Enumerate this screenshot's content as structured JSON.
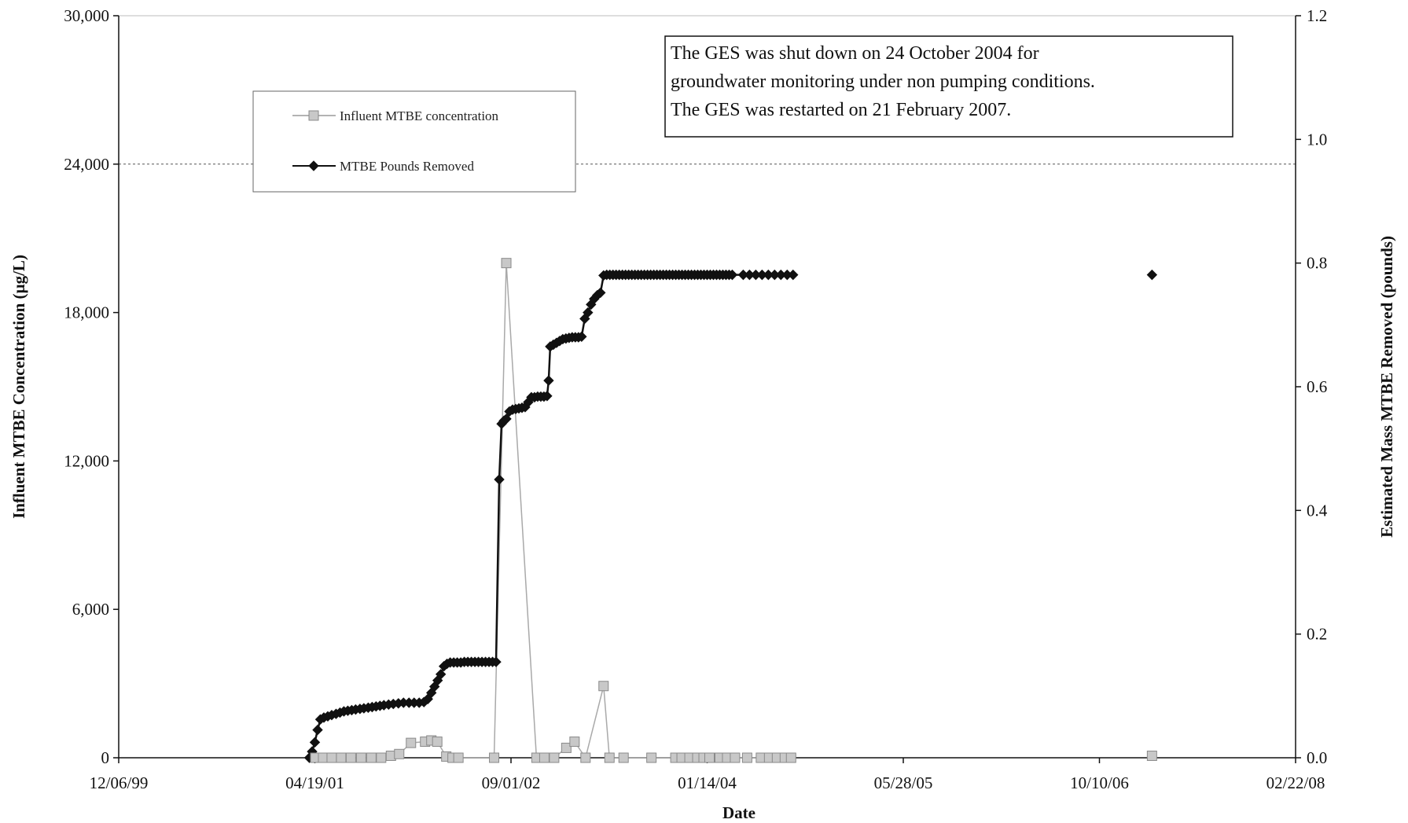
{
  "chart_data": {
    "type": "line",
    "title": "",
    "xlabel": "Date",
    "ylabel_left": "Influent MTBE Concentration (µg/L)",
    "ylabel_right": "Estimated Mass MTBE Removed (pounds)",
    "x_axis": {
      "type": "date",
      "range": [
        "1999-12-06",
        "2008-02-22"
      ],
      "ticks": [
        "1999-12-06",
        "2001-04-19",
        "2002-09-01",
        "2004-01-14",
        "2005-05-28",
        "2006-10-10",
        "2008-02-22"
      ],
      "tick_labels": [
        "12/06/99",
        "04/19/01",
        "09/01/02",
        "01/14/04",
        "05/28/05",
        "10/10/06",
        "02/22/08"
      ]
    },
    "y_left": {
      "range": [
        0,
        30000
      ],
      "ticks": [
        0,
        6000,
        12000,
        18000,
        24000,
        30000
      ],
      "tick_labels": [
        "0",
        "6,000",
        "12,000",
        "18,000",
        "24,000",
        "30,000"
      ]
    },
    "y_right": {
      "range": [
        0,
        1.2
      ],
      "ticks": [
        0,
        0.2,
        0.4,
        0.6,
        0.8,
        1.0,
        1.2
      ],
      "tick_labels": [
        "0.0",
        "0.2",
        "0.4",
        "0.6",
        "0.8",
        "1.0",
        "1.2"
      ]
    },
    "grid": "dashed horizontal at 24,000",
    "legend_placement": "top-left",
    "annotation": [
      "The GES was shut down on 24 October 2004 for",
      "groundwater monitoring under non pumping conditions.",
      "The GES was restarted on 21 February 2007."
    ],
    "colors": {
      "concentration": "#c8c8c8",
      "concentration_edge": "#8a8a8a",
      "pounds": "#111111"
    },
    "series": [
      {
        "name": "Influent MTBE concentration",
        "axis": "left",
        "marker": "square",
        "points": [
          [
            "2001-04-20",
            0
          ],
          [
            "2001-05-10",
            0
          ],
          [
            "2001-06-01",
            0
          ],
          [
            "2001-06-25",
            0
          ],
          [
            "2001-07-20",
            0
          ],
          [
            "2001-08-15",
            0
          ],
          [
            "2001-09-10",
            0
          ],
          [
            "2001-10-05",
            0
          ],
          [
            "2001-10-30",
            80
          ],
          [
            "2001-11-20",
            150
          ],
          [
            "2001-12-20",
            600
          ],
          [
            "2002-01-25",
            650
          ],
          [
            "2002-02-10",
            700
          ],
          [
            "2002-02-25",
            650
          ],
          [
            "2002-03-20",
            50
          ],
          [
            "2002-04-05",
            0
          ],
          [
            "2002-04-20",
            0
          ],
          [
            "2002-07-20",
            0
          ],
          [
            "2002-08-20",
            20000
          ],
          [
            "2002-11-05",
            0
          ],
          [
            "2002-11-25",
            0
          ],
          [
            "2002-12-20",
            0
          ],
          [
            "2003-01-20",
            400
          ],
          [
            "2003-02-10",
            650
          ],
          [
            "2003-03-10",
            0
          ],
          [
            "2003-04-25",
            2900
          ],
          [
            "2003-05-10",
            0
          ],
          [
            "2003-06-15",
            0
          ],
          [
            "2003-08-25",
            0
          ],
          [
            "2003-10-25",
            0
          ],
          [
            "2003-11-10",
            0
          ],
          [
            "2003-11-30",
            0
          ],
          [
            "2003-12-20",
            0
          ],
          [
            "2004-01-05",
            0
          ],
          [
            "2004-01-20",
            0
          ],
          [
            "2004-02-15",
            0
          ],
          [
            "2004-03-05",
            0
          ],
          [
            "2004-03-25",
            0
          ],
          [
            "2004-04-25",
            0
          ],
          [
            "2004-05-30",
            0
          ],
          [
            "2004-06-20",
            0
          ],
          [
            "2004-07-10",
            0
          ],
          [
            "2004-07-30",
            0
          ],
          [
            "2004-08-15",
            0
          ],
          [
            "2007-02-21",
            80
          ]
        ]
      },
      {
        "name": "MTBE Pounds Removed",
        "axis": "right",
        "marker": "diamond",
        "points": [
          [
            "2001-04-05",
            0.0
          ],
          [
            "2001-04-12",
            0.01
          ],
          [
            "2001-04-19",
            0.025
          ],
          [
            "2001-04-26",
            0.045
          ],
          [
            "2001-05-03",
            0.062
          ],
          [
            "2001-05-12",
            0.065
          ],
          [
            "2001-05-22",
            0.067
          ],
          [
            "2001-06-01",
            0.069
          ],
          [
            "2001-06-12",
            0.071
          ],
          [
            "2001-06-22",
            0.073
          ],
          [
            "2001-07-02",
            0.075
          ],
          [
            "2001-07-12",
            0.076
          ],
          [
            "2001-07-22",
            0.077
          ],
          [
            "2001-08-01",
            0.078
          ],
          [
            "2001-08-12",
            0.079
          ],
          [
            "2001-08-22",
            0.08
          ],
          [
            "2001-09-02",
            0.081
          ],
          [
            "2001-09-12",
            0.082
          ],
          [
            "2001-09-22",
            0.083
          ],
          [
            "2001-10-02",
            0.084
          ],
          [
            "2001-10-12",
            0.085
          ],
          [
            "2001-10-24",
            0.086
          ],
          [
            "2001-11-05",
            0.087
          ],
          [
            "2001-11-18",
            0.088
          ],
          [
            "2001-12-01",
            0.089
          ],
          [
            "2001-12-15",
            0.089
          ],
          [
            "2001-12-28",
            0.089
          ],
          [
            "2002-01-10",
            0.089
          ],
          [
            "2002-01-22",
            0.09
          ],
          [
            "2002-02-01",
            0.095
          ],
          [
            "2002-02-10",
            0.105
          ],
          [
            "2002-02-18",
            0.115
          ],
          [
            "2002-02-26",
            0.125
          ],
          [
            "2002-03-06",
            0.135
          ],
          [
            "2002-03-14",
            0.148
          ],
          [
            "2002-03-22",
            0.152
          ],
          [
            "2002-03-30",
            0.154
          ],
          [
            "2002-04-08",
            0.154
          ],
          [
            "2002-04-17",
            0.154
          ],
          [
            "2002-04-26",
            0.154
          ],
          [
            "2002-05-05",
            0.155
          ],
          [
            "2002-05-14",
            0.155
          ],
          [
            "2002-05-23",
            0.155
          ],
          [
            "2002-06-01",
            0.155
          ],
          [
            "2002-06-10",
            0.155
          ],
          [
            "2002-06-19",
            0.155
          ],
          [
            "2002-06-28",
            0.155
          ],
          [
            "2002-07-07",
            0.155
          ],
          [
            "2002-07-16",
            0.155
          ],
          [
            "2002-07-25",
            0.155
          ],
          [
            "2002-08-02",
            0.45
          ],
          [
            "2002-08-08",
            0.54
          ],
          [
            "2002-08-14",
            0.545
          ],
          [
            "2002-08-20",
            0.548
          ],
          [
            "2002-08-28",
            0.56
          ],
          [
            "2002-09-05",
            0.563
          ],
          [
            "2002-09-13",
            0.564
          ],
          [
            "2002-09-21",
            0.565
          ],
          [
            "2002-09-29",
            0.566
          ],
          [
            "2002-10-07",
            0.567
          ],
          [
            "2002-10-15",
            0.575
          ],
          [
            "2002-10-23",
            0.583
          ],
          [
            "2002-10-31",
            0.583
          ],
          [
            "2002-11-08",
            0.584
          ],
          [
            "2002-11-16",
            0.584
          ],
          [
            "2002-11-24",
            0.584
          ],
          [
            "2002-12-02",
            0.585
          ],
          [
            "2002-12-06",
            0.61
          ],
          [
            "2002-12-10",
            0.665
          ],
          [
            "2002-12-18",
            0.668
          ],
          [
            "2002-12-26",
            0.671
          ],
          [
            "2003-01-03",
            0.674
          ],
          [
            "2003-01-11",
            0.677
          ],
          [
            "2003-01-19",
            0.678
          ],
          [
            "2003-01-27",
            0.679
          ],
          [
            "2003-02-04",
            0.68
          ],
          [
            "2003-02-12",
            0.68
          ],
          [
            "2003-02-20",
            0.68
          ],
          [
            "2003-02-28",
            0.681
          ],
          [
            "2003-03-08",
            0.71
          ],
          [
            "2003-03-16",
            0.72
          ],
          [
            "2003-03-24",
            0.733
          ],
          [
            "2003-04-01",
            0.742
          ],
          [
            "2003-04-09",
            0.748
          ],
          [
            "2003-04-17",
            0.752
          ],
          [
            "2003-04-25",
            0.78
          ],
          [
            "2003-05-03",
            0.781
          ],
          [
            "2003-05-11",
            0.781
          ],
          [
            "2003-05-19",
            0.781
          ],
          [
            "2003-05-27",
            0.781
          ],
          [
            "2003-06-04",
            0.781
          ],
          [
            "2003-06-12",
            0.781
          ],
          [
            "2003-06-20",
            0.781
          ],
          [
            "2003-06-28",
            0.781
          ],
          [
            "2003-07-06",
            0.781
          ],
          [
            "2003-07-14",
            0.781
          ],
          [
            "2003-07-22",
            0.781
          ],
          [
            "2003-07-30",
            0.781
          ],
          [
            "2003-08-07",
            0.781
          ],
          [
            "2003-08-15",
            0.781
          ],
          [
            "2003-08-23",
            0.781
          ],
          [
            "2003-08-31",
            0.781
          ],
          [
            "2003-09-08",
            0.781
          ],
          [
            "2003-09-16",
            0.781
          ],
          [
            "2003-09-24",
            0.781
          ],
          [
            "2003-10-02",
            0.781
          ],
          [
            "2003-10-10",
            0.781
          ],
          [
            "2003-10-18",
            0.781
          ],
          [
            "2003-10-26",
            0.781
          ],
          [
            "2003-11-03",
            0.781
          ],
          [
            "2003-11-11",
            0.781
          ],
          [
            "2003-11-19",
            0.781
          ],
          [
            "2003-11-27",
            0.781
          ],
          [
            "2003-12-05",
            0.781
          ],
          [
            "2003-12-13",
            0.781
          ],
          [
            "2003-12-21",
            0.781
          ],
          [
            "2003-12-29",
            0.781
          ],
          [
            "2004-01-06",
            0.781
          ],
          [
            "2004-01-14",
            0.781
          ],
          [
            "2004-01-22",
            0.781
          ],
          [
            "2004-01-30",
            0.781
          ],
          [
            "2004-02-07",
            0.781
          ],
          [
            "2004-02-15",
            0.781
          ],
          [
            "2004-02-23",
            0.781
          ],
          [
            "2004-03-02",
            0.781
          ],
          [
            "2004-03-10",
            0.781
          ],
          [
            "2004-03-18",
            0.781
          ],
          [
            "2004-04-15",
            0.781
          ],
          [
            "2004-05-01",
            0.781
          ],
          [
            "2004-05-17",
            0.781
          ],
          [
            "2004-06-02",
            0.781
          ],
          [
            "2004-06-18",
            0.781
          ],
          [
            "2004-07-04",
            0.781
          ],
          [
            "2004-07-20",
            0.781
          ],
          [
            "2004-08-05",
            0.781
          ],
          [
            "2004-08-20",
            0.781
          ],
          [
            "2007-02-21",
            0.781
          ]
        ]
      }
    ]
  }
}
